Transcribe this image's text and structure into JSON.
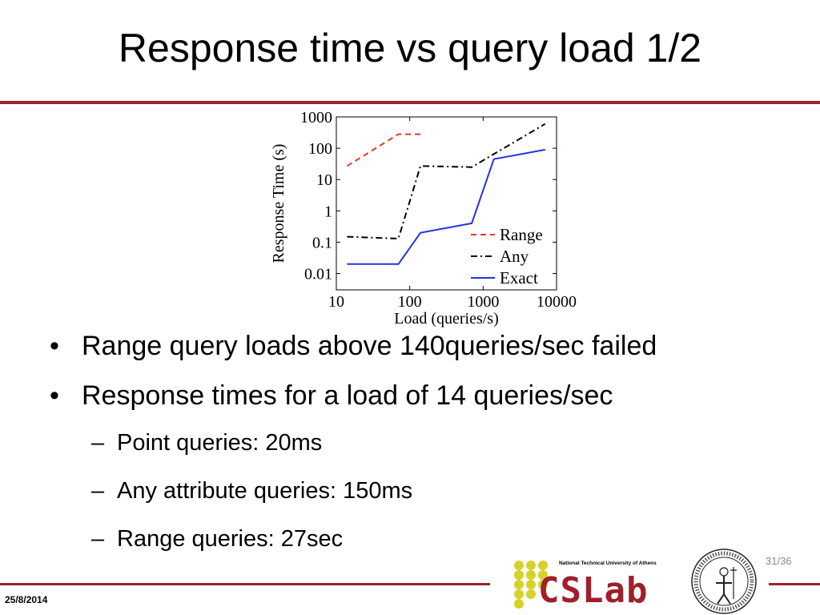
{
  "slide": {
    "title": "Response time vs query load 1/2",
    "date": "25/8/2014",
    "page_number": "31/36"
  },
  "bullets": [
    "Range query loads above 140queries/sec failed",
    "Response times for a load of 14 queries/sec"
  ],
  "sub_bullets": [
    "Point queries: 20ms",
    "Any attribute queries: 150ms",
    "Range queries: 27sec"
  ],
  "logo": {
    "name": "CSLab",
    "university": "National Technical University of Athens"
  },
  "colors": {
    "accent": "#a0202c",
    "logo_dots": "#d6d228",
    "logo_text": "#a01f2b"
  },
  "chart_data": {
    "type": "line",
    "xlabel": "Load (queries/s)",
    "ylabel": "Response Time (s)",
    "xscale": "log",
    "yscale": "log",
    "xlim": [
      10,
      10000
    ],
    "ylim": [
      0.003,
      1000
    ],
    "x_ticks": [
      "10",
      "100",
      "1000",
      "10000"
    ],
    "y_ticks": [
      "0.01",
      "0.1",
      "1",
      "10",
      "100",
      "1000"
    ],
    "legend_position": "bottom-right",
    "series": [
      {
        "name": "Range",
        "color": "#e8332c",
        "dash": "dashed",
        "points": [
          [
            14,
            27
          ],
          [
            70,
            280
          ],
          [
            140,
            280
          ]
        ]
      },
      {
        "name": "Any",
        "color": "#000000",
        "dash": "dashdot",
        "points": [
          [
            14,
            0.15
          ],
          [
            70,
            0.13
          ],
          [
            140,
            27
          ],
          [
            700,
            25
          ],
          [
            1400,
            65
          ],
          [
            7000,
            600
          ]
        ]
      },
      {
        "name": "Exact",
        "color": "#2233dd",
        "dash": "solid",
        "points": [
          [
            14,
            0.02
          ],
          [
            70,
            0.02
          ],
          [
            140,
            0.2
          ],
          [
            700,
            0.4
          ],
          [
            1400,
            45
          ],
          [
            7000,
            90
          ]
        ]
      }
    ]
  }
}
